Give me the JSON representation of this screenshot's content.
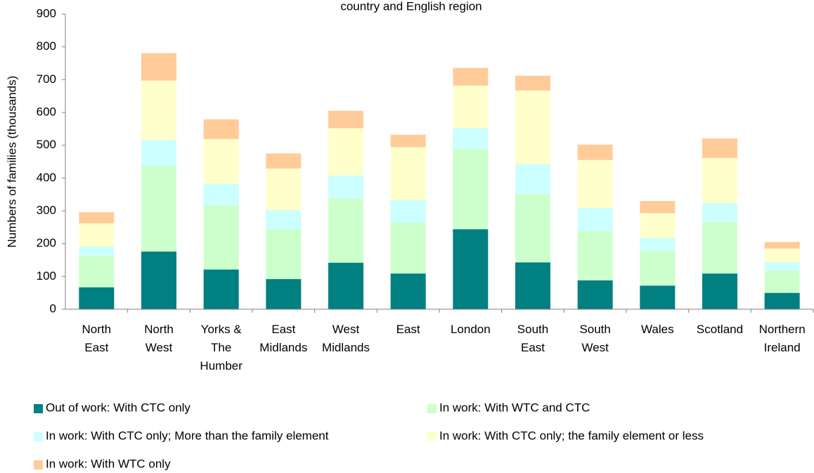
{
  "chart_data": {
    "type": "stacked_bar",
    "title": "country and English region",
    "y_label": "Numbers of families (thousands)",
    "categories": [
      [
        "North",
        "East"
      ],
      [
        "North",
        "West"
      ],
      [
        "Yorks &",
        "The",
        "Humber"
      ],
      [
        "East",
        "Midlands"
      ],
      [
        "West",
        "Midlands"
      ],
      [
        "East"
      ],
      [
        "London"
      ],
      [
        "South",
        "East"
      ],
      [
        "South",
        "West"
      ],
      [
        "Wales"
      ],
      [
        "Scotland"
      ],
      [
        "Northern",
        "Ireland"
      ]
    ],
    "series": [
      {
        "name": "Out of work: With CTC only",
        "color": "#008080",
        "values": [
          67,
          176,
          121,
          92,
          142,
          109,
          244,
          143,
          88,
          72,
          109,
          50
        ]
      },
      {
        "name": "In work: With WTC and CTC",
        "color": "#ccffcc",
        "values": [
          95,
          261,
          195,
          151,
          196,
          155,
          245,
          209,
          150,
          106,
          157,
          68
        ]
      },
      {
        "name": "In work: With CTC only; More than the family element",
        "color": "#ccffff",
        "values": [
          30,
          80,
          66,
          59,
          70,
          69,
          63,
          90,
          70,
          39,
          58,
          26
        ]
      },
      {
        "name": "In work: With CTC only; the family element or less",
        "color": "#ffffcc",
        "values": [
          70,
          180,
          137,
          127,
          144,
          161,
          130,
          225,
          147,
          76,
          137,
          41
        ]
      },
      {
        "name": "In work: With WTC only",
        "color": "#ffcc99",
        "values": [
          34,
          84,
          60,
          46,
          53,
          38,
          54,
          45,
          47,
          37,
          60,
          20
        ]
      }
    ],
    "ylim": [
      0,
      900
    ],
    "yticks": [
      0,
      100,
      200,
      300,
      400,
      500,
      600,
      700,
      800,
      900
    ]
  }
}
